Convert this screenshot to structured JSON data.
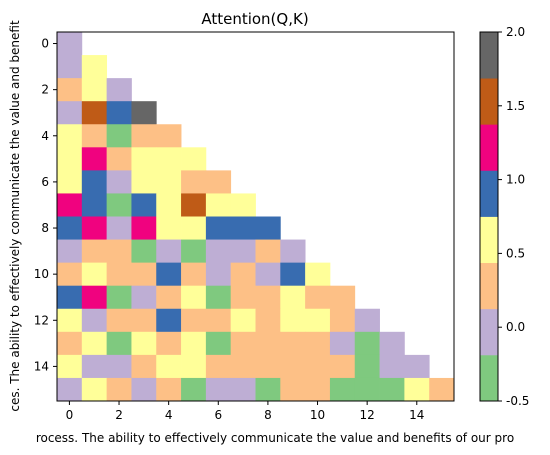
{
  "chart_data": {
    "type": "heatmap",
    "title": "Attention(Q,K)",
    "xlabel": "rocess. The ability to effectively communicate the value and benefits of our pro",
    "ylabel": "ces. The ability to effectively communicate the value and benefit",
    "x_ticks": [
      "0",
      "2",
      "4",
      "6",
      "8",
      "10",
      "12",
      "14"
    ],
    "y_ticks": [
      "0",
      "2",
      "4",
      "6",
      "8",
      "10",
      "12",
      "14"
    ],
    "rows": 16,
    "cols": 16,
    "mask": "upper-triangle",
    "values": [
      [
        0.0
      ],
      [
        0.0,
        0.5
      ],
      [
        0.25,
        0.5,
        0.0
      ],
      [
        0.0,
        1.5,
        0.75,
        1.75
      ],
      [
        0.5,
        0.25,
        -0.25,
        0.25,
        0.25
      ],
      [
        0.5,
        1.25,
        0.25,
        0.5,
        0.5,
        0.5
      ],
      [
        0.5,
        0.75,
        0.0,
        0.5,
        0.5,
        0.25,
        0.25
      ],
      [
        1.25,
        0.75,
        -0.25,
        0.75,
        0.5,
        1.5,
        0.5,
        0.5
      ],
      [
        0.75,
        1.25,
        0.0,
        1.25,
        0.5,
        0.5,
        0.75,
        0.75,
        0.75
      ],
      [
        0.0,
        0.25,
        0.25,
        -0.25,
        0.0,
        -0.25,
        0.0,
        0.0,
        0.25,
        0.0
      ],
      [
        0.25,
        0.5,
        0.25,
        0.25,
        0.75,
        0.25,
        0.0,
        0.25,
        0.0,
        0.75,
        0.5
      ],
      [
        0.75,
        1.25,
        -0.25,
        0.0,
        0.25,
        0.5,
        -0.25,
        0.25,
        0.25,
        0.5,
        0.25,
        0.25
      ],
      [
        0.5,
        0.0,
        0.25,
        0.25,
        0.75,
        0.25,
        0.25,
        0.5,
        0.25,
        0.5,
        0.5,
        0.25,
        0.0
      ],
      [
        0.25,
        0.5,
        -0.25,
        0.5,
        0.25,
        0.5,
        -0.25,
        0.25,
        0.25,
        0.25,
        0.25,
        0.0,
        -0.25,
        0.0
      ],
      [
        0.5,
        0.0,
        0.0,
        0.25,
        0.5,
        0.5,
        0.25,
        0.25,
        0.25,
        0.25,
        0.25,
        0.25,
        -0.25,
        0.0,
        0.0
      ],
      [
        0.0,
        0.5,
        0.25,
        0.0,
        0.25,
        -0.25,
        0.0,
        0.0,
        -0.25,
        0.25,
        0.25,
        -0.25,
        -0.25,
        -0.25,
        0.5,
        0.25
      ]
    ],
    "colorbar": {
      "min": -0.5,
      "max": 2.0,
      "ticks": [
        "-0.5",
        "0.0",
        "0.5",
        "1.0",
        "1.5",
        "2.0"
      ],
      "colors": [
        "#7fc97f",
        "#beaed4",
        "#fdc086",
        "#ffff99",
        "#386cb0",
        "#f0027f",
        "#bf5b17",
        "#666666"
      ]
    }
  }
}
